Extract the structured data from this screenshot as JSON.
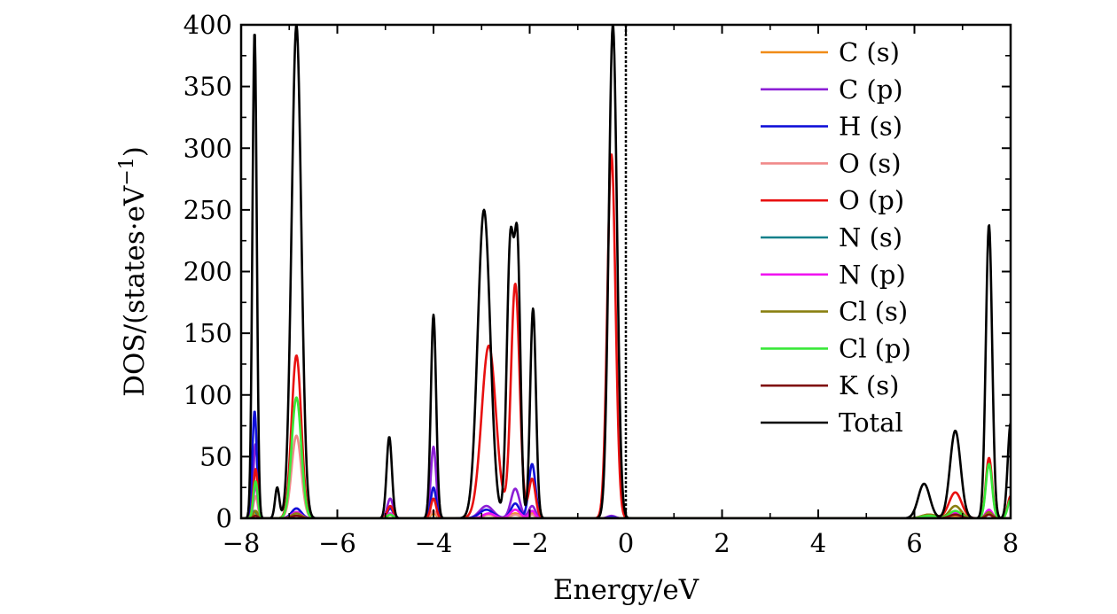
{
  "chart_data": {
    "type": "line",
    "title": "",
    "xlabel": "Energy/eV",
    "ylabel": "DOS/(states·eV−1)",
    "xlim": [
      -8,
      8
    ],
    "ylim": [
      0,
      400
    ],
    "x_ticks": [
      -8,
      -6,
      -4,
      -2,
      0,
      2,
      4,
      6,
      8
    ],
    "x_tick_labels": [
      "−8",
      "−6",
      "−4",
      "−2",
      "0",
      "2",
      "4",
      "6",
      "8"
    ],
    "y_ticks": [
      0,
      50,
      100,
      150,
      200,
      250,
      300,
      350,
      400
    ],
    "y_tick_labels": [
      "0",
      "50",
      "100",
      "150",
      "200",
      "250",
      "300",
      "350",
      "400"
    ],
    "grid": false,
    "legend_position": "top-right",
    "fermi_line_x": 0,
    "series": [
      {
        "name": "C (s)",
        "color": "#f08c18",
        "peaks": [
          [
            -7.7,
            3,
            0.06
          ],
          [
            -6.85,
            5,
            0.1
          ],
          [
            -4.9,
            3,
            0.06
          ],
          [
            -4.0,
            4,
            0.06
          ],
          [
            -2.85,
            3,
            0.12
          ],
          [
            -2.3,
            4,
            0.1
          ],
          [
            -1.95,
            4,
            0.06
          ],
          [
            -0.3,
            1,
            0.08
          ],
          [
            6.8,
            2,
            0.15
          ],
          [
            7.55,
            3,
            0.07
          ]
        ]
      },
      {
        "name": "C (p)",
        "color": "#8c1fd6",
        "peaks": [
          [
            -7.7,
            60,
            0.045
          ],
          [
            -6.85,
            8,
            0.1
          ],
          [
            -4.9,
            16,
            0.06
          ],
          [
            -4.0,
            58,
            0.055
          ],
          [
            -2.9,
            10,
            0.14
          ],
          [
            -2.3,
            24,
            0.09
          ],
          [
            -1.95,
            10,
            0.07
          ],
          [
            -0.3,
            2,
            0.08
          ],
          [
            6.8,
            4,
            0.15
          ],
          [
            7.55,
            6,
            0.07
          ]
        ]
      },
      {
        "name": "H (s)",
        "color": "#1010d8",
        "peaks": [
          [
            -7.72,
            87,
            0.045
          ],
          [
            -6.85,
            8,
            0.1
          ],
          [
            -4.9,
            8,
            0.06
          ],
          [
            -4.0,
            25,
            0.055
          ],
          [
            -2.9,
            7,
            0.14
          ],
          [
            -2.3,
            12,
            0.09
          ],
          [
            -1.95,
            44,
            0.07
          ],
          [
            -0.3,
            1,
            0.08
          ]
        ]
      },
      {
        "name": "O (s)",
        "color": "#f08a8a",
        "peaks": [
          [
            -7.7,
            18,
            0.045
          ],
          [
            -6.85,
            67,
            0.1
          ],
          [
            -4.9,
            4,
            0.06
          ],
          [
            -4.0,
            6,
            0.06
          ],
          [
            -2.85,
            3,
            0.12
          ],
          [
            -2.3,
            3,
            0.1
          ],
          [
            -1.95,
            3,
            0.06
          ]
        ]
      },
      {
        "name": "O (p)",
        "color": "#e81010",
        "peaks": [
          [
            -7.7,
            40,
            0.045
          ],
          [
            -6.85,
            132,
            0.1
          ],
          [
            -4.9,
            10,
            0.06
          ],
          [
            -4.0,
            16,
            0.055
          ],
          [
            -2.85,
            140,
            0.15
          ],
          [
            -2.3,
            190,
            0.09
          ],
          [
            -1.95,
            32,
            0.07
          ],
          [
            -0.3,
            295,
            0.085
          ],
          [
            6.3,
            3,
            0.15
          ],
          [
            6.85,
            21,
            0.13
          ],
          [
            7.55,
            49,
            0.065
          ],
          [
            8.0,
            18,
            0.06
          ]
        ]
      },
      {
        "name": "N (s)",
        "color": "#10808a",
        "peaks": [
          [
            -7.72,
            6,
            0.045
          ],
          [
            -6.85,
            2,
            0.1
          ]
        ]
      },
      {
        "name": "N (p)",
        "color": "#f014f0",
        "peaks": [
          [
            -7.7,
            26,
            0.045
          ],
          [
            -6.85,
            5,
            0.1
          ],
          [
            -4.9,
            4,
            0.06
          ],
          [
            -2.85,
            4,
            0.12
          ],
          [
            -2.3,
            7,
            0.1
          ],
          [
            -1.95,
            6,
            0.06
          ],
          [
            6.85,
            5,
            0.13
          ],
          [
            7.55,
            7,
            0.07
          ]
        ]
      },
      {
        "name": "Cl (s)",
        "color": "#8a8010",
        "peaks": [
          [
            -7.7,
            6,
            0.045
          ],
          [
            -6.85,
            4,
            0.1
          ],
          [
            6.3,
            3,
            0.15
          ],
          [
            6.85,
            10,
            0.12
          ],
          [
            7.55,
            5,
            0.07
          ]
        ]
      },
      {
        "name": "Cl (p)",
        "color": "#38e838",
        "peaks": [
          [
            -7.7,
            30,
            0.045
          ],
          [
            -6.85,
            98,
            0.1
          ],
          [
            -4.9,
            3,
            0.06
          ],
          [
            6.3,
            2,
            0.15
          ],
          [
            6.85,
            6,
            0.12
          ],
          [
            7.55,
            44,
            0.065
          ],
          [
            8.0,
            15,
            0.06
          ]
        ]
      },
      {
        "name": "K (s)",
        "color": "#801010",
        "peaks": [
          [
            -7.7,
            2,
            0.045
          ],
          [
            -6.85,
            2,
            0.1
          ],
          [
            6.85,
            3,
            0.12
          ],
          [
            7.55,
            3,
            0.07
          ]
        ]
      },
      {
        "name": "Total",
        "color": "#000000",
        "peaks": [
          [
            -7.72,
            395,
            0.045
          ],
          [
            -7.25,
            25,
            0.045
          ],
          [
            -6.85,
            400,
            0.1
          ],
          [
            -4.92,
            66,
            0.055
          ],
          [
            -4.0,
            165,
            0.055
          ],
          [
            -2.95,
            250,
            0.13
          ],
          [
            -2.4,
            225,
            0.075
          ],
          [
            -2.25,
            200,
            0.06
          ],
          [
            -1.93,
            170,
            0.06
          ],
          [
            -0.27,
            400,
            0.085
          ],
          [
            6.2,
            28,
            0.12
          ],
          [
            6.85,
            71,
            0.11
          ],
          [
            7.55,
            238,
            0.065
          ],
          [
            8.0,
            77,
            0.06
          ]
        ]
      }
    ]
  }
}
